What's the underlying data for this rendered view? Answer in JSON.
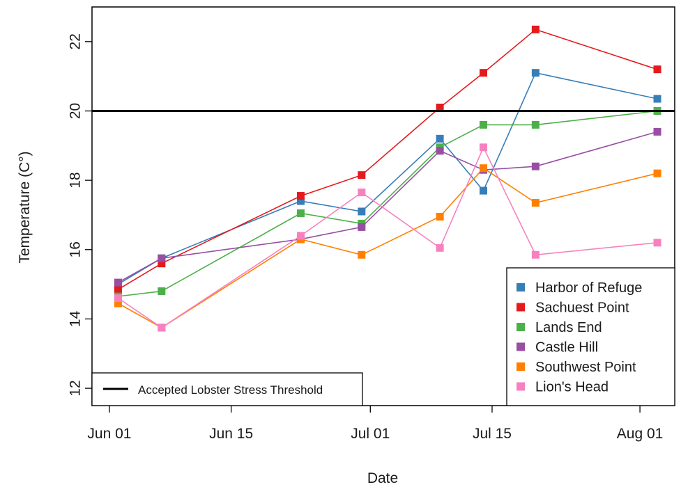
{
  "chart_data": {
    "type": "line",
    "xlabel": "Date",
    "ylabel": "Temperature (C°)",
    "x_axis": {
      "type": "date",
      "range": [
        "2024-05-30",
        "2024-08-05"
      ],
      "ticks": [
        {
          "date": "2024-06-01",
          "label": "Jun 01"
        },
        {
          "date": "2024-06-15",
          "label": "Jun 15"
        },
        {
          "date": "2024-07-01",
          "label": "Jul 01"
        },
        {
          "date": "2024-07-15",
          "label": "Jul 15"
        },
        {
          "date": "2024-08-01",
          "label": "Aug 01"
        }
      ]
    },
    "y_axis": {
      "range": [
        11.5,
        23.0
      ],
      "ticks": [
        12,
        14,
        16,
        18,
        20,
        22
      ]
    },
    "x": [
      "2024-06-02",
      "2024-06-07",
      "2024-06-23",
      "2024-06-30",
      "2024-07-09",
      "2024-07-14",
      "2024-07-20",
      "2024-08-03"
    ],
    "threshold": {
      "value": 20,
      "label": "Accepted Lobster Stress Threshold",
      "color": "#000000"
    },
    "legend_position": "bottom-right",
    "threshold_legend_position": "bottom-left",
    "grid": false,
    "series": [
      {
        "name": "Harbor of Refuge",
        "color": "#377EB8",
        "values": [
          15.0,
          15.75,
          17.4,
          17.1,
          19.2,
          17.7,
          21.1,
          20.35
        ]
      },
      {
        "name": "Sachuest Point",
        "color": "#E41A1C",
        "values": [
          14.85,
          15.6,
          17.55,
          18.15,
          20.1,
          21.1,
          22.35,
          21.2
        ]
      },
      {
        "name": "Lands End",
        "color": "#4DAF4A",
        "values": [
          14.65,
          14.8,
          17.05,
          16.75,
          18.95,
          19.6,
          19.6,
          20.0
        ]
      },
      {
        "name": "Castle Hill",
        "color": "#984EA3",
        "values": [
          15.05,
          15.75,
          16.3,
          16.65,
          18.85,
          18.3,
          18.4,
          19.4
        ]
      },
      {
        "name": "Southwest Point",
        "color": "#FF7F00",
        "values": [
          14.45,
          13.75,
          16.3,
          15.85,
          16.95,
          18.35,
          17.35,
          18.2
        ]
      },
      {
        "name": "Lion's Head",
        "color": "#F781BF",
        "values": [
          14.6,
          13.75,
          16.4,
          17.65,
          16.05,
          18.95,
          15.85,
          16.2
        ]
      }
    ]
  }
}
